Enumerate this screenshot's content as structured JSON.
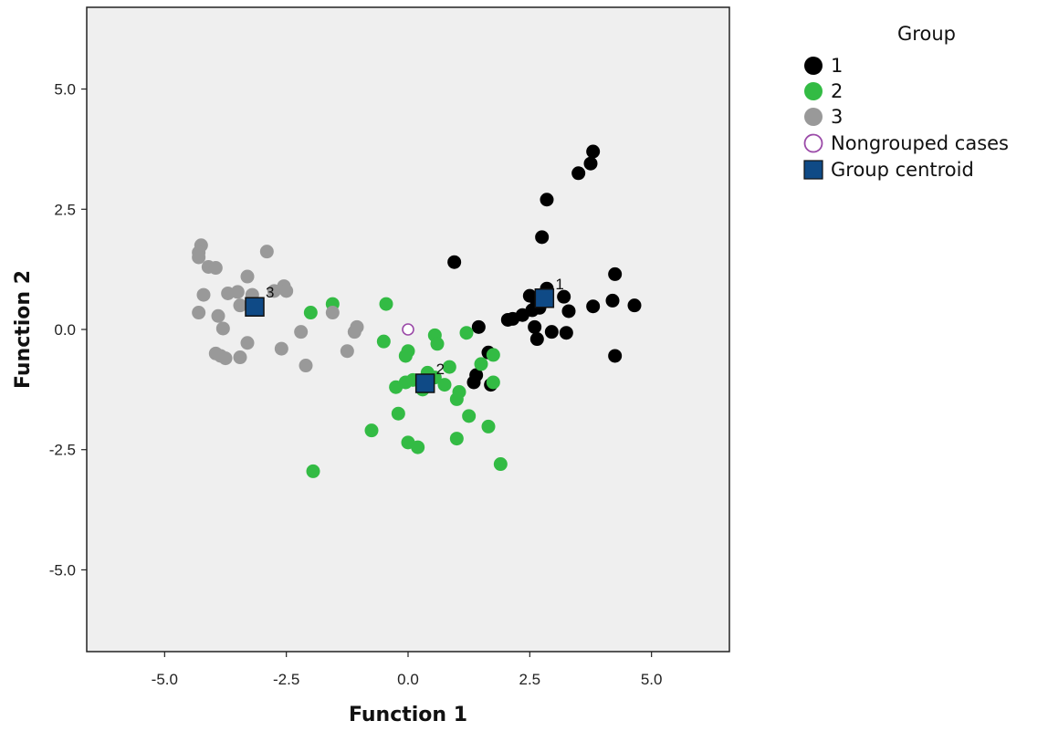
{
  "chart_data": {
    "type": "scatter",
    "xlabel": "Function 1",
    "ylabel": "Function 2",
    "xlim": [
      -6.6,
      6.6
    ],
    "ylim": [
      -6.7,
      6.7
    ],
    "x_ticks": [
      -5.0,
      -2.5,
      0.0,
      2.5,
      5.0
    ],
    "y_ticks": [
      -5.0,
      -2.5,
      0.0,
      2.5,
      5.0
    ],
    "x_tick_labels": [
      "-5.0",
      "-2.5",
      "0.0",
      "2.5",
      "5.0"
    ],
    "y_tick_labels": [
      "-5.0",
      "-2.5",
      "0.0",
      "2.5",
      "5.0"
    ],
    "grid": false,
    "legend_position": "top-right outside",
    "legend": {
      "title": "Group",
      "entries": [
        "1",
        "2",
        "3",
        "Nongrouped cases",
        "Group centroid"
      ]
    },
    "colors": {
      "group1": "#000000",
      "group2": "#33bb44",
      "group3": "#999999",
      "nongrouped": "#9b4aa8",
      "centroid": "#0f4a86",
      "plot_background": "#efefef"
    },
    "series": [
      {
        "name": "1",
        "points": [
          [
            3.8,
            3.7
          ],
          [
            3.75,
            3.45
          ],
          [
            3.5,
            3.25
          ],
          [
            2.85,
            2.7
          ],
          [
            2.75,
            1.92
          ],
          [
            0.95,
            1.4
          ],
          [
            4.25,
            1.15
          ],
          [
            2.85,
            0.85
          ],
          [
            2.5,
            0.7
          ],
          [
            2.65,
            0.55
          ],
          [
            3.2,
            0.68
          ],
          [
            4.2,
            0.6
          ],
          [
            4.65,
            0.5
          ],
          [
            3.8,
            0.48
          ],
          [
            2.7,
            0.45
          ],
          [
            2.55,
            0.4
          ],
          [
            3.3,
            0.38
          ],
          [
            2.35,
            0.3
          ],
          [
            2.15,
            0.22
          ],
          [
            2.05,
            0.2
          ],
          [
            2.6,
            0.05
          ],
          [
            1.45,
            0.05
          ],
          [
            2.95,
            -0.05
          ],
          [
            3.25,
            -0.07
          ],
          [
            2.65,
            -0.2
          ],
          [
            1.65,
            -0.48
          ],
          [
            4.25,
            -0.55
          ],
          [
            1.4,
            -0.95
          ],
          [
            1.35,
            -1.1
          ],
          [
            1.7,
            -1.15
          ]
        ]
      },
      {
        "name": "2",
        "points": [
          [
            -1.55,
            0.53
          ],
          [
            -0.45,
            0.53
          ],
          [
            -2.0,
            0.35
          ],
          [
            1.2,
            -0.07
          ],
          [
            0.55,
            -0.12
          ],
          [
            0.6,
            -0.3
          ],
          [
            -0.5,
            -0.25
          ],
          [
            0.0,
            -0.45
          ],
          [
            -0.05,
            -0.55
          ],
          [
            1.75,
            -0.53
          ],
          [
            1.5,
            -0.72
          ],
          [
            0.85,
            -0.78
          ],
          [
            0.4,
            -0.9
          ],
          [
            -0.05,
            -1.1
          ],
          [
            0.1,
            -1.05
          ],
          [
            0.55,
            -1.0
          ],
          [
            0.75,
            -1.15
          ],
          [
            1.75,
            -1.1
          ],
          [
            -0.25,
            -1.2
          ],
          [
            0.3,
            -1.25
          ],
          [
            1.05,
            -1.3
          ],
          [
            1.0,
            -1.45
          ],
          [
            -0.2,
            -1.75
          ],
          [
            1.25,
            -1.8
          ],
          [
            -0.75,
            -2.1
          ],
          [
            1.65,
            -2.02
          ],
          [
            1.0,
            -2.27
          ],
          [
            0.0,
            -2.35
          ],
          [
            0.2,
            -2.45
          ],
          [
            1.9,
            -2.8
          ],
          [
            -1.95,
            -2.95
          ]
        ]
      },
      {
        "name": "3",
        "points": [
          [
            -4.25,
            1.75
          ],
          [
            -4.3,
            1.6
          ],
          [
            -4.3,
            1.5
          ],
          [
            -2.9,
            1.62
          ],
          [
            -4.1,
            1.3
          ],
          [
            -3.95,
            1.28
          ],
          [
            -3.3,
            1.1
          ],
          [
            -2.55,
            0.9
          ],
          [
            -3.7,
            0.75
          ],
          [
            -3.5,
            0.78
          ],
          [
            -2.75,
            0.8
          ],
          [
            -2.5,
            0.8
          ],
          [
            -4.2,
            0.72
          ],
          [
            -3.2,
            0.72
          ],
          [
            -3.45,
            0.5
          ],
          [
            -4.3,
            0.35
          ],
          [
            -3.9,
            0.28
          ],
          [
            -1.55,
            0.35
          ],
          [
            -1.05,
            0.05
          ],
          [
            -3.8,
            0.02
          ],
          [
            -2.2,
            -0.05
          ],
          [
            -1.1,
            -0.05
          ],
          [
            -3.3,
            -0.28
          ],
          [
            -2.6,
            -0.4
          ],
          [
            -1.25,
            -0.45
          ],
          [
            -3.95,
            -0.5
          ],
          [
            -3.85,
            -0.55
          ],
          [
            -3.75,
            -0.6
          ],
          [
            -3.45,
            -0.58
          ],
          [
            -2.1,
            -0.75
          ]
        ]
      },
      {
        "name": "Nongrouped cases",
        "points": [
          [
            0.0,
            0.0
          ]
        ]
      }
    ],
    "centroids": [
      {
        "label": "1",
        "x": 2.8,
        "y": 0.65
      },
      {
        "label": "2",
        "x": 0.35,
        "y": -1.12
      },
      {
        "label": "3",
        "x": -3.15,
        "y": 0.47
      }
    ]
  }
}
